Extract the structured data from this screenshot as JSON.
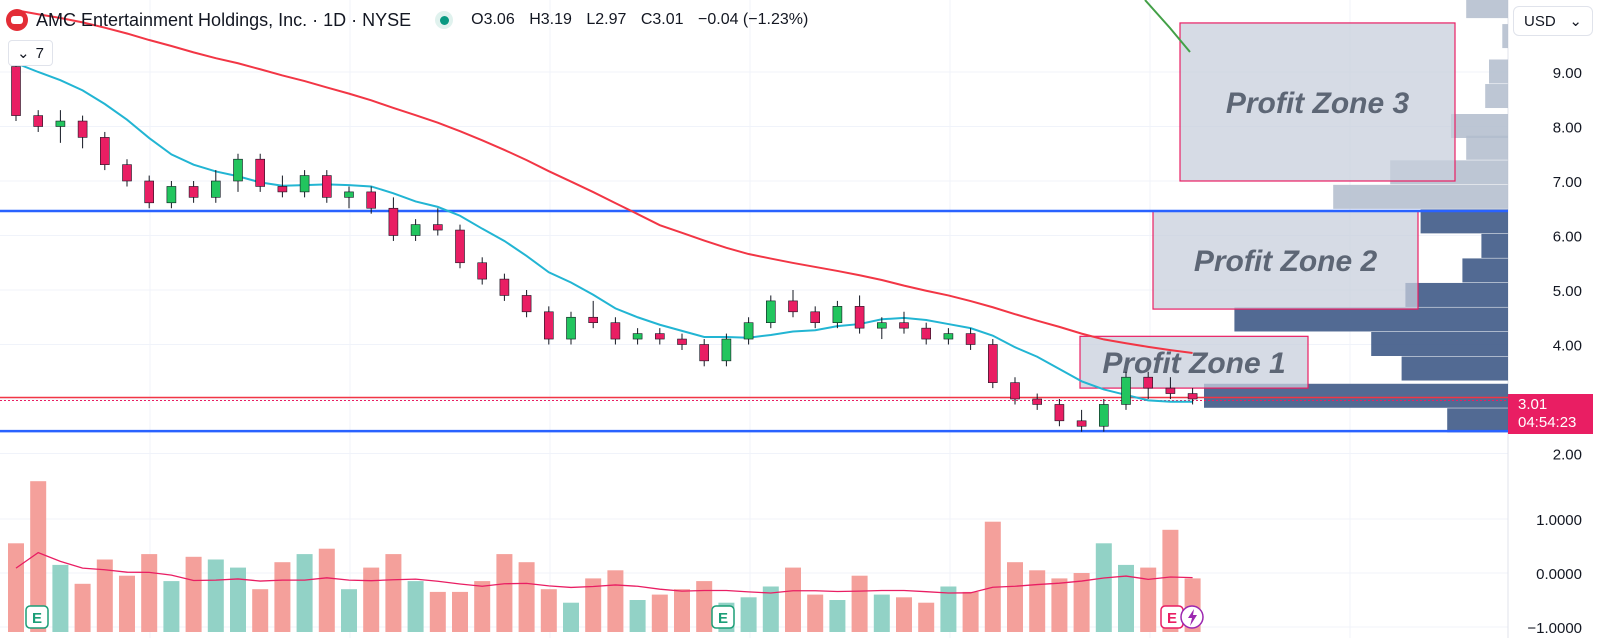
{
  "header": {
    "symbol_title": "AMC Entertainment Holdings, Inc. · 1D · NYSE",
    "open": "O3.06",
    "high": "H3.19",
    "low": "L2.97",
    "close": "C3.01",
    "change": "−0.04 (−1.23%)",
    "indicator_count": "7"
  },
  "currency": "USD",
  "price_tag": {
    "price": "3.01",
    "countdown": "04:54:23",
    "color": "#e91e63"
  },
  "colors": {
    "up": "#22c55e",
    "down": "#e91e63",
    "ma_fast": "#22b5d3",
    "ma_slow": "#f23645",
    "level_line": "#2962ff"
  },
  "chart_data": {
    "type": "candlestick",
    "price_axis": {
      "ticks": [
        "9.00",
        "8.00",
        "7.00",
        "6.00",
        "5.00",
        "4.00",
        "3.00",
        "2.00"
      ],
      "range": [
        1.55,
        9.75
      ]
    },
    "volume_axis": {
      "ticks": [
        "1.0000",
        "0.0000",
        "−1.0000"
      ]
    },
    "zones": [
      {
        "label": "Profit Zone 3",
        "low": 7.0,
        "high": 9.9,
        "start": 43,
        "end": 53
      },
      {
        "label": "Profit Zone 2",
        "low": 4.65,
        "high": 6.45,
        "start": 42,
        "end": 52
      },
      {
        "label": "Profit Zone 1",
        "low": 3.2,
        "high": 4.15,
        "start": 39,
        "end": 48
      }
    ],
    "levels": [
      6.45,
      2.41
    ],
    "last_price": 3.01,
    "volume_profile": [
      {
        "price": 10.2,
        "value": 0.11
      },
      {
        "price": 9.65,
        "value": 0.015
      },
      {
        "price": 9.0,
        "value": 0.05
      },
      {
        "price": 8.55,
        "value": 0.06
      },
      {
        "price": 8.0,
        "value": 0.15
      },
      {
        "price": 7.6,
        "value": 0.11
      },
      {
        "price": 7.15,
        "value": 0.31
      },
      {
        "price": 6.7,
        "value": 0.46
      },
      {
        "price": 6.25,
        "value": 0.23
      },
      {
        "price": 5.8,
        "value": 0.07
      },
      {
        "price": 5.35,
        "value": 0.12
      },
      {
        "price": 4.9,
        "value": 0.27
      },
      {
        "price": 4.45,
        "value": 0.72
      },
      {
        "price": 4.0,
        "value": 0.36
      },
      {
        "price": 3.55,
        "value": 0.28
      },
      {
        "price": 3.05,
        "value": 0.8
      },
      {
        "price": 2.6,
        "value": 0.16
      }
    ],
    "candles": [
      [
        9.1,
        9.5,
        8.1,
        8.2
      ],
      [
        8.2,
        8.3,
        7.9,
        8.0
      ],
      [
        8.0,
        8.3,
        7.7,
        8.1
      ],
      [
        8.1,
        8.2,
        7.6,
        7.8
      ],
      [
        7.8,
        7.9,
        7.2,
        7.3
      ],
      [
        7.3,
        7.4,
        6.9,
        7.0
      ],
      [
        7.0,
        7.1,
        6.5,
        6.6
      ],
      [
        6.6,
        7.0,
        6.5,
        6.9
      ],
      [
        6.9,
        7.0,
        6.6,
        6.7
      ],
      [
        6.7,
        7.2,
        6.6,
        7.0
      ],
      [
        7.0,
        7.5,
        6.8,
        7.4
      ],
      [
        7.4,
        7.5,
        6.8,
        6.9
      ],
      [
        6.9,
        7.1,
        6.7,
        6.8
      ],
      [
        6.8,
        7.2,
        6.7,
        7.1
      ],
      [
        7.1,
        7.2,
        6.6,
        6.7
      ],
      [
        6.7,
        6.9,
        6.5,
        6.8
      ],
      [
        6.8,
        6.9,
        6.4,
        6.5
      ],
      [
        6.5,
        6.7,
        5.9,
        6.0
      ],
      [
        6.0,
        6.3,
        5.9,
        6.2
      ],
      [
        6.2,
        6.5,
        6.0,
        6.1
      ],
      [
        6.1,
        6.2,
        5.4,
        5.5
      ],
      [
        5.5,
        5.6,
        5.1,
        5.2
      ],
      [
        5.2,
        5.3,
        4.8,
        4.9
      ],
      [
        4.9,
        5.0,
        4.5,
        4.6
      ],
      [
        4.6,
        4.7,
        4.0,
        4.1
      ],
      [
        4.1,
        4.6,
        4.0,
        4.5
      ],
      [
        4.5,
        4.8,
        4.3,
        4.4
      ],
      [
        4.4,
        4.5,
        4.0,
        4.1
      ],
      [
        4.1,
        4.3,
        4.0,
        4.2
      ],
      [
        4.2,
        4.3,
        4.0,
        4.1
      ],
      [
        4.1,
        4.2,
        3.9,
        4.0
      ],
      [
        4.0,
        4.1,
        3.6,
        3.7
      ],
      [
        3.7,
        4.2,
        3.6,
        4.1
      ],
      [
        4.1,
        4.5,
        4.0,
        4.4
      ],
      [
        4.4,
        4.9,
        4.3,
        4.8
      ],
      [
        4.8,
        5.0,
        4.5,
        4.6
      ],
      [
        4.6,
        4.7,
        4.3,
        4.4
      ],
      [
        4.4,
        4.8,
        4.3,
        4.7
      ],
      [
        4.7,
        4.9,
        4.2,
        4.3
      ],
      [
        4.3,
        4.5,
        4.1,
        4.4
      ],
      [
        4.4,
        4.6,
        4.2,
        4.3
      ],
      [
        4.3,
        4.4,
        4.0,
        4.1
      ],
      [
        4.1,
        4.3,
        4.0,
        4.2
      ],
      [
        4.2,
        4.3,
        3.9,
        4.0
      ],
      [
        4.0,
        4.1,
        3.2,
        3.3
      ],
      [
        3.3,
        3.4,
        2.9,
        3.0
      ],
      [
        3.0,
        3.1,
        2.8,
        2.9
      ],
      [
        2.9,
        3.0,
        2.5,
        2.6
      ],
      [
        2.6,
        2.8,
        2.4,
        2.5
      ],
      [
        2.5,
        3.0,
        2.4,
        2.9
      ],
      [
        2.9,
        3.5,
        2.8,
        3.4
      ],
      [
        3.4,
        3.5,
        3.0,
        3.2
      ],
      [
        3.2,
        3.4,
        3.0,
        3.1
      ],
      [
        3.1,
        3.2,
        2.9,
        3.0
      ]
    ],
    "volume": [
      0.55,
      1.7,
      0.15,
      -0.2,
      0.25,
      -0.05,
      0.35,
      -0.15,
      0.3,
      0.25,
      0.1,
      -0.3,
      0.2,
      0.35,
      0.45,
      -0.3,
      0.1,
      0.35,
      -0.15,
      -0.35,
      -0.35,
      -0.15,
      0.35,
      0.2,
      -0.3,
      -0.55,
      -0.1,
      0.05,
      -0.5,
      -0.4,
      -0.3,
      -0.15,
      -0.55,
      -0.45,
      -0.25,
      0.1,
      -0.4,
      -0.5,
      -0.05,
      -0.4,
      -0.45,
      -0.55,
      -0.25,
      -0.35,
      0.95,
      0.2,
      0.05,
      -0.1,
      0.0,
      0.55,
      0.15,
      0.1,
      0.8,
      -0.1
    ]
  }
}
